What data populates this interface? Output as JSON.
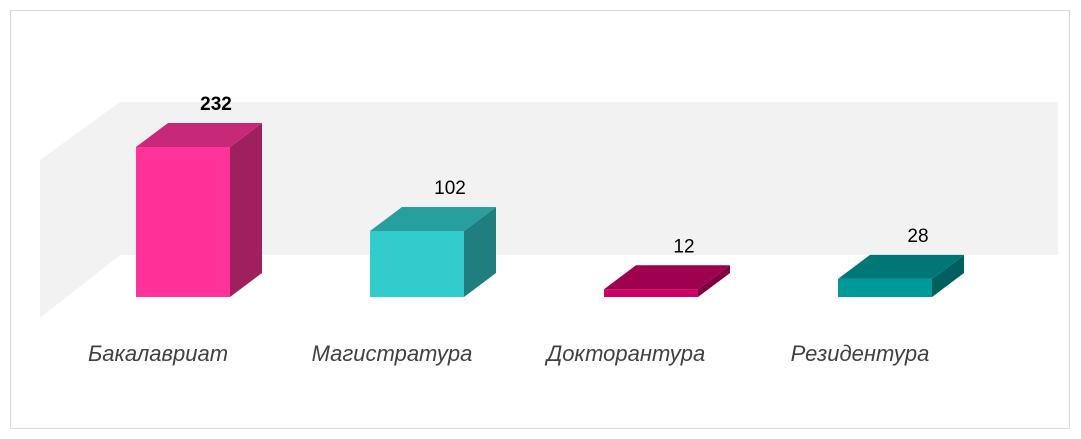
{
  "chart_data": {
    "type": "bar3d",
    "categories": [
      "Бакалавриат",
      "Магистратура",
      "Докторантура",
      "Резидентура"
    ],
    "values": [
      232,
      102,
      12,
      28
    ],
    "colors": [
      "#ff3399",
      "#33cccc",
      "#cc0066",
      "#009999"
    ]
  }
}
